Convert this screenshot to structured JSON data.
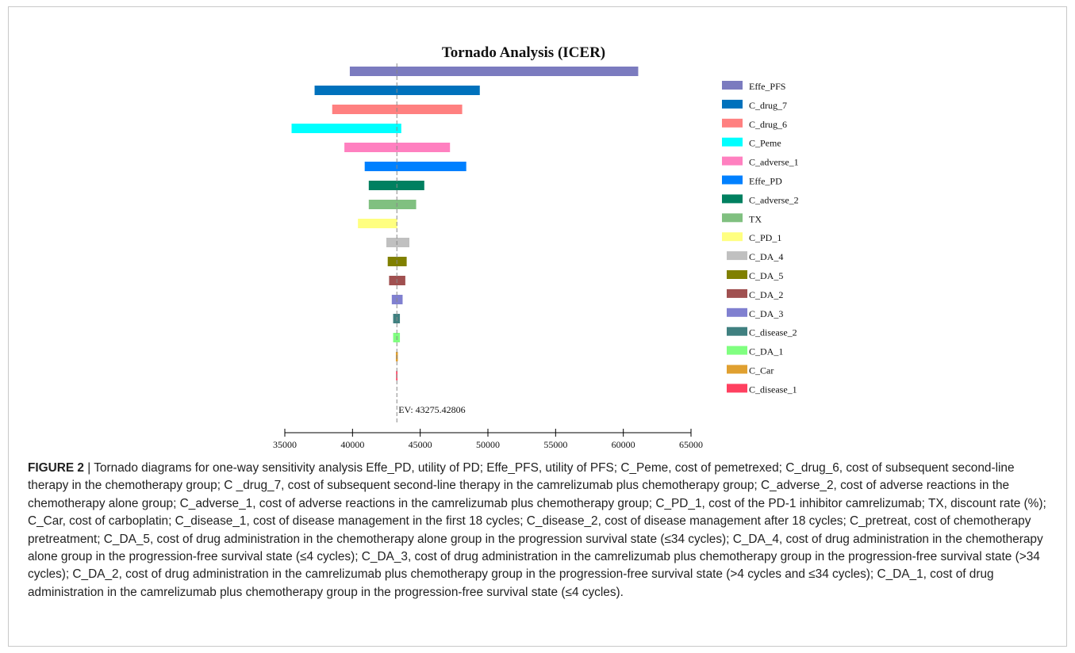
{
  "chart_data": {
    "type": "bar",
    "title": "Tornado Analysis (ICER)",
    "ev_label": "EV: 43275.42806",
    "ev_value": 43275.42806,
    "xlim": [
      35000,
      65000
    ],
    "xticks": [
      "35000",
      "40000",
      "45000",
      "50000",
      "55000",
      "60000",
      "65000"
    ],
    "legend_position": "right",
    "series": [
      {
        "name": "Effe_PFS",
        "low": 39800,
        "high": 61100,
        "color": "#7b7bbf"
      },
      {
        "name": "C_drug_7",
        "low": 37200,
        "high": 49400,
        "color": "#0071bc"
      },
      {
        "name": "C_drug_6",
        "low": 38500,
        "high": 48100,
        "color": "#ff8080"
      },
      {
        "name": "C_Peme",
        "low": 35500,
        "high": 43600,
        "color": "#00ffff"
      },
      {
        "name": "C_adverse_1",
        "low": 39400,
        "high": 47200,
        "color": "#ff80c0"
      },
      {
        "name": "Effe_PD",
        "low": 40900,
        "high": 48400,
        "color": "#0080ff"
      },
      {
        "name": "C_adverse_2",
        "low": 41200,
        "high": 45300,
        "color": "#008060"
      },
      {
        "name": "TX",
        "low": 41200,
        "high": 44700,
        "color": "#80c080"
      },
      {
        "name": "C_PD_1",
        "low": 40400,
        "high": 43300,
        "color": "#ffff80"
      },
      {
        "name": "C_DA_4",
        "low": 42500,
        "high": 44200,
        "color": "#c0c0c0"
      },
      {
        "name": "C_DA_5",
        "low": 42600,
        "high": 44000,
        "color": "#808000"
      },
      {
        "name": "C_DA_2",
        "low": 42700,
        "high": 43900,
        "color": "#a05050"
      },
      {
        "name": "C_DA_3",
        "low": 42900,
        "high": 43700,
        "color": "#8080d0"
      },
      {
        "name": "C_disease_2",
        "low": 43000,
        "high": 43500,
        "color": "#408080"
      },
      {
        "name": "C_DA_1",
        "low": 43000,
        "high": 43500,
        "color": "#80ff80"
      },
      {
        "name": "C_Car",
        "low": 43200,
        "high": 43350,
        "color": "#e0a030"
      },
      {
        "name": "C_disease_1",
        "low": 43220,
        "high": 43320,
        "color": "#ff4060"
      }
    ]
  },
  "caption": {
    "figure_label": "FIGURE 2",
    "separator": " | ",
    "text": "Tornado diagrams for one-way sensitivity analysis Effe_PD, utility of PD; Effe_PFS, utility of PFS; C_Peme, cost of pemetrexed; C_drug_6, cost of subsequent second-line therapy in the chemotherapy group; C _drug_7, cost of subsequent second-line therapy in the camrelizumab plus chemotherapy group; C_adverse_2, cost of adverse reactions in the chemotherapy alone group; C_adverse_1, cost of adverse reactions in the camrelizumab plus chemotherapy group; C_PD_1, cost of the PD-1 inhibitor camrelizumab; TX, discount rate (%); C_Car, cost of carboplatin; C_disease_1, cost of disease management in the first 18 cycles; C_disease_2, cost of disease management after 18 cycles; C_pretreat, cost of chemotherapy pretreatment; C_DA_5, cost of drug administration in the chemotherapy alone group in the progression survival state (≤34 cycles); C_DA_4, cost of drug administration in the chemotherapy alone group in the progression-free survival state (≤4 cycles); C_DA_3, cost of drug administration in the camrelizumab plus chemotherapy group in the progression-free survival state (>34 cycles); C_DA_2, cost of drug administration in the camrelizumab plus chemotherapy group in the progression-free survival state (>4 cycles and ≤34 cycles); C_DA_1, cost of drug administration in the camrelizumab plus chemotherapy group in the progression-free survival state (≤4 cycles)."
  }
}
